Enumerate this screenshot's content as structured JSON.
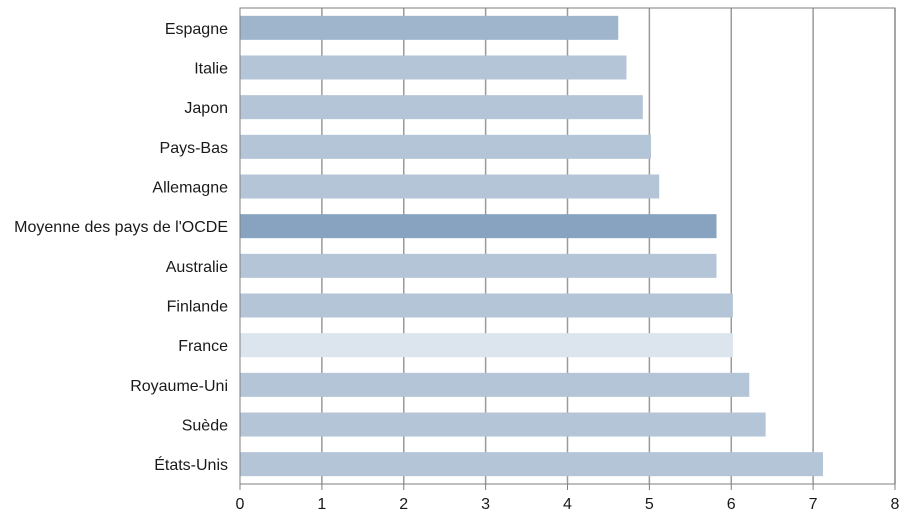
{
  "chart_data": {
    "type": "bar",
    "orientation": "horizontal",
    "title": "",
    "xlabel": "",
    "ylabel": "",
    "xlim": [
      0,
      8
    ],
    "xticks": [
      "0",
      "1",
      "2",
      "3",
      "4",
      "5",
      "6",
      "7",
      "8"
    ],
    "grid": "vertical",
    "categories": [
      "Espagne",
      "Italie",
      "Japon",
      "Pays-Bas",
      "Allemagne",
      "Moyenne des pays de l'OCDE",
      "Australie",
      "Finlande",
      "France",
      "Royaume-Uni",
      "Suède",
      "États-Unis"
    ],
    "values": [
      4.62,
      4.72,
      4.92,
      5.02,
      5.12,
      5.82,
      5.82,
      6.02,
      6.02,
      6.22,
      6.42,
      7.12
    ],
    "colors": {
      "default": "#b3c5d6",
      "first": "#9fb5cc",
      "average": "#87a3bf",
      "highlight": "#dce4ed",
      "grid": "#9a9a9a",
      "axis": "#7f7f7f"
    },
    "average_category": "Moyenne des pays de l'OCDE",
    "highlight_category": "France"
  }
}
